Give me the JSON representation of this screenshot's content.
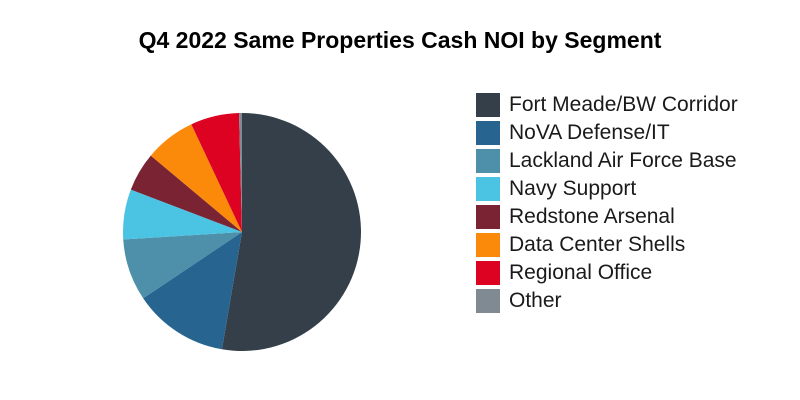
{
  "chart_data": {
    "type": "pie",
    "title": "Q4 2022 Same Properties Cash NOI by Segment",
    "legend_position": "right",
    "slices": [
      {
        "label": "Fort Meade/BW Corridor",
        "value": 52.7,
        "color": "#343f4a"
      },
      {
        "label": "NoVA Defense/IT",
        "value": 12.9,
        "color": "#276590"
      },
      {
        "label": "Lackland Air Force Base",
        "value": 8.4,
        "color": "#4e90aa"
      },
      {
        "label": "Navy Support",
        "value": 6.8,
        "color": "#4bc4e3"
      },
      {
        "label": "Redstone Arsenal",
        "value": 5.3,
        "color": "#7a2433"
      },
      {
        "label": "Data Center Shells",
        "value": 6.9,
        "color": "#fb8a0a"
      },
      {
        "label": "Regional Office",
        "value": 6.6,
        "color": "#dd0222"
      },
      {
        "label": "Other",
        "value": 0.4,
        "color": "#7f8a93"
      }
    ]
  }
}
